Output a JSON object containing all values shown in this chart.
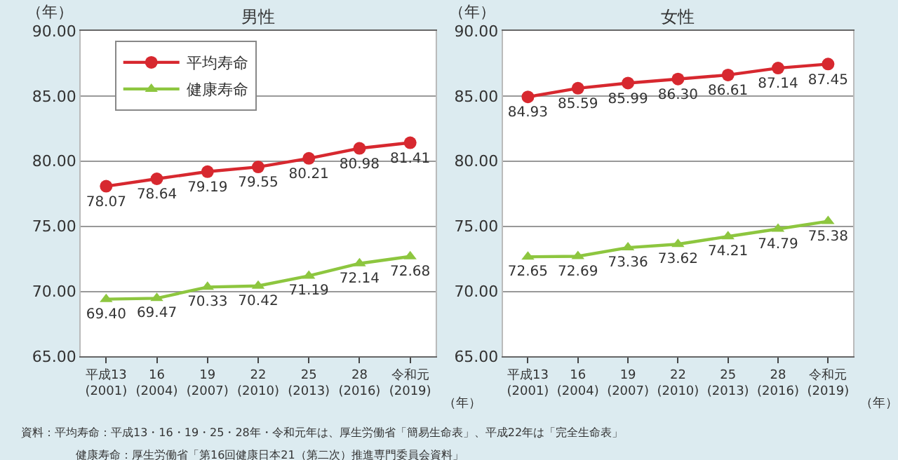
{
  "chart_data": [
    {
      "type": "line",
      "title": "男性",
      "ylabel": "（年）",
      "xlabel": "（年）",
      "categories": [
        "平成13\n(2001)",
        "16\n(2004)",
        "19\n(2007)",
        "22\n(2010)",
        "25\n(2013)",
        "28\n(2016)",
        "令和元\n(2019)"
      ],
      "series": [
        {
          "name": "平均寿命",
          "color": "#d7282f",
          "marker": "circle",
          "values": [
            78.07,
            78.64,
            79.19,
            79.55,
            80.21,
            80.98,
            81.41
          ],
          "value_labels": [
            "78.07",
            "78.64",
            "79.19",
            "79.55",
            "80.21",
            "80.98",
            "81.41"
          ]
        },
        {
          "name": "健康寿命",
          "color": "#8dc63f",
          "marker": "triangle",
          "values": [
            69.4,
            69.47,
            70.33,
            70.42,
            71.19,
            72.14,
            72.68
          ],
          "value_labels": [
            "69.40",
            "69.47",
            "70.33",
            "70.42",
            "71.19",
            "72.14",
            "72.68"
          ]
        }
      ],
      "ylim": [
        65,
        90
      ],
      "yticks": [
        {
          "value": 65,
          "label": "65.00"
        },
        {
          "value": 70,
          "label": "70.00"
        },
        {
          "value": 75,
          "label": "75.00"
        },
        {
          "value": 80,
          "label": "80.00"
        },
        {
          "value": 85,
          "label": "85.00"
        },
        {
          "value": 90,
          "label": "90.00"
        }
      ],
      "grid": "y",
      "legend": "top left",
      "annotations": [
        "資料：平均寿命：平成13・16・19・25・28年・令和元年は、厚生労働省「簡易生命表」、平成22年は「完全生命表」",
        "健康寿命：厚生労働省「第16回健康日本21（第二次）推進専門委員会資料」"
      ]
    },
    {
      "type": "line",
      "title": "女性",
      "ylabel": "（年）",
      "xlabel": "（年）",
      "categories": [
        "平成13\n(2001)",
        "16\n(2004)",
        "19\n(2007)",
        "22\n(2010)",
        "25\n(2013)",
        "28\n(2016)",
        "令和元\n(2019)"
      ],
      "series": [
        {
          "color": "#d7282f",
          "marker": "circle",
          "values": [
            84.93,
            85.59,
            85.99,
            86.3,
            86.61,
            87.14,
            87.45
          ],
          "value_labels": [
            "84.93",
            "85.59",
            "85.99",
            "86.30",
            "86.61",
            "87.14",
            "87.45"
          ]
        },
        {
          "color": "#8dc63f",
          "marker": "triangle",
          "values": [
            72.65,
            72.69,
            73.36,
            73.62,
            74.21,
            74.79,
            75.38
          ],
          "value_labels": [
            "72.65",
            "72.69",
            "73.36",
            "73.62",
            "74.21",
            "74.79",
            "75.38"
          ]
        }
      ],
      "ylim": [
        65,
        90
      ],
      "yticks": [
        {
          "value": 65,
          "label": "65.00"
        },
        {
          "value": 70,
          "label": "70.00"
        },
        {
          "value": 75,
          "label": "75.00"
        },
        {
          "value": 80,
          "label": "80.00"
        },
        {
          "value": 85,
          "label": "85.00"
        },
        {
          "value": 90,
          "label": "90.00"
        }
      ],
      "grid": "y",
      "legend": false
    }
  ]
}
